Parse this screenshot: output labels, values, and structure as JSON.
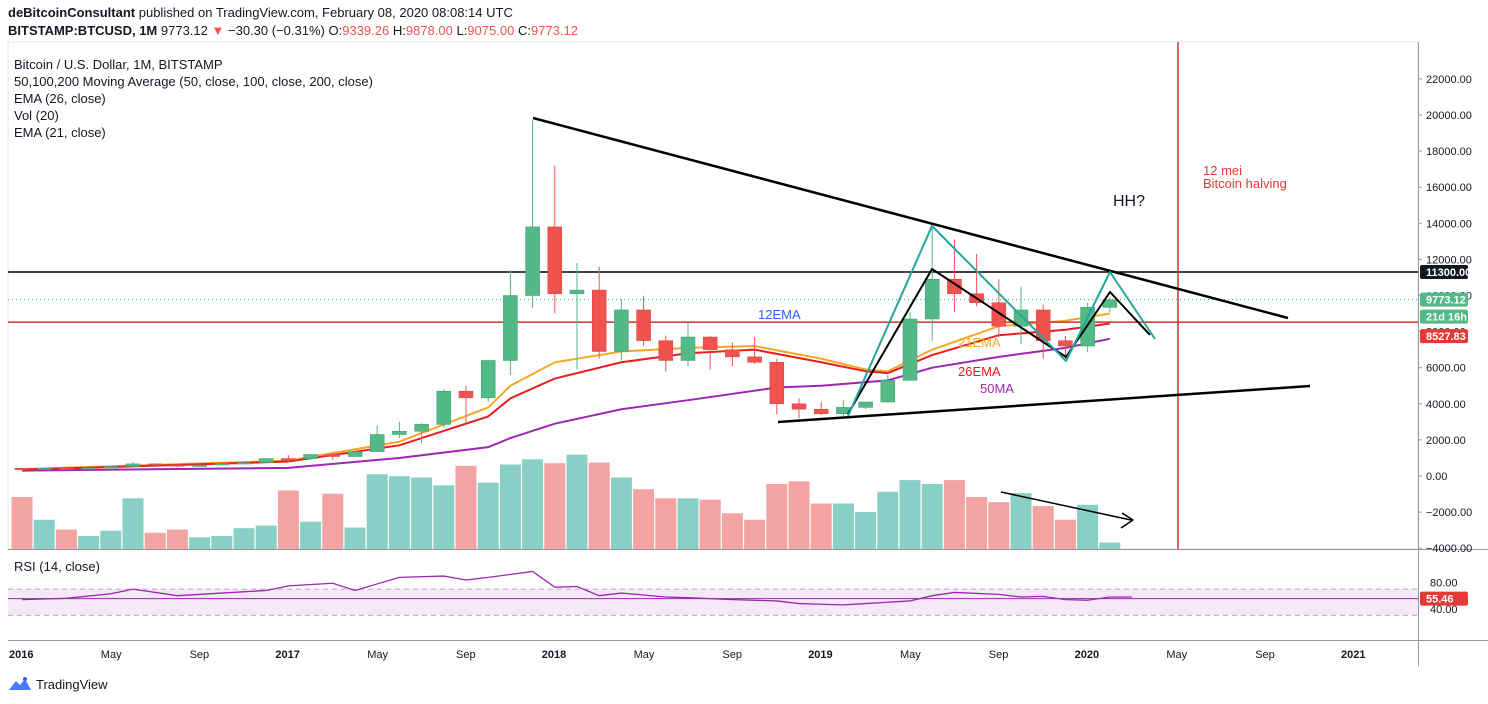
{
  "header": {
    "author": "deBitcoinConsultant",
    "published": "published on TradingView.com, February 08, 2020 08:08:14 UTC",
    "symbol": "BITSTAMP:BTCUSD, 1M",
    "last": "9773.12",
    "change": "−30.30 (−0.31%)",
    "o_label": "O:",
    "o_value": "9339.26",
    "h_label": "H:",
    "h_value": "9878.00",
    "l_label": "L:",
    "l_value": "9075.00",
    "c_label": "C:",
    "c_value": "9773.12"
  },
  "legend": [
    "Bitcoin / U.S. Dollar, 1M, BITSTAMP",
    "50,100,200 Moving Average (50, close, 100, close, 200, close)",
    "EMA (26, close)",
    "Vol (20)",
    "EMA (21, close)"
  ],
  "rsi_label": "RSI (14, close)",
  "footer": {
    "brand": "TradingView"
  },
  "colors": {
    "up": "#26a69a",
    "up_fill": "#53b987",
    "down": "#ef5350",
    "ema21": "#f5a623",
    "ema26": "#e91e1e",
    "ma50": "#9c27b0",
    "rsi": "#9c27b0",
    "red_line": "#d32f2f"
  },
  "annotations": {
    "ema12": "12EMA",
    "ema21": "21EMA",
    "ema26": "26EMA",
    "ma50": "50MA",
    "hh": "HH?",
    "halving_1": "12 mei",
    "halving_2": "Bitcoin halving"
  },
  "price_tags": {
    "resistance": "11300.00",
    "last": "9773.12",
    "countdown": "21d 16h",
    "ema_level": "8527.83",
    "rsi": "55.46"
  },
  "chart_data": {
    "type": "candlestick",
    "x_ticks": [
      "2016",
      "May",
      "Sep",
      "2017",
      "May",
      "Sep",
      "2018",
      "May",
      "Sep",
      "2019",
      "May",
      "Sep",
      "2020",
      "May",
      "Sep",
      "2021"
    ],
    "y_ticks": [
      "22000.00",
      "20000.00",
      "18000.00",
      "16000.00",
      "14000.00",
      "12000.00",
      "10000.00",
      "8000.00",
      "6000.00",
      "4000.00",
      "2000.00",
      "0.00",
      "−2000.00",
      "−4000.00"
    ],
    "rsi_ticks": [
      "80.00",
      "40.00"
    ],
    "ylim": [
      -4000,
      23500
    ],
    "candles": [
      {
        "t": "2016-01",
        "o": 430,
        "h": 460,
        "l": 350,
        "c": 370
      },
      {
        "t": "2016-02",
        "o": 370,
        "h": 440,
        "l": 360,
        "c": 435
      },
      {
        "t": "2016-03",
        "o": 435,
        "h": 440,
        "l": 390,
        "c": 415
      },
      {
        "t": "2016-04",
        "o": 415,
        "h": 470,
        "l": 410,
        "c": 450
      },
      {
        "t": "2016-05",
        "o": 450,
        "h": 550,
        "l": 440,
        "c": 530
      },
      {
        "t": "2016-06",
        "o": 530,
        "h": 780,
        "l": 520,
        "c": 670
      },
      {
        "t": "2016-07",
        "o": 670,
        "h": 700,
        "l": 600,
        "c": 620
      },
      {
        "t": "2016-08",
        "o": 620,
        "h": 630,
        "l": 480,
        "c": 575
      },
      {
        "t": "2016-09",
        "o": 575,
        "h": 620,
        "l": 570,
        "c": 610
      },
      {
        "t": "2016-10",
        "o": 610,
        "h": 720,
        "l": 600,
        "c": 700
      },
      {
        "t": "2016-11",
        "o": 700,
        "h": 760,
        "l": 680,
        "c": 745
      },
      {
        "t": "2016-12",
        "o": 745,
        "h": 980,
        "l": 740,
        "c": 965
      },
      {
        "t": "2017-01",
        "o": 965,
        "h": 1150,
        "l": 750,
        "c": 960
      },
      {
        "t": "2017-02",
        "o": 960,
        "h": 1210,
        "l": 930,
        "c": 1190
      },
      {
        "t": "2017-03",
        "o": 1190,
        "h": 1300,
        "l": 900,
        "c": 1080
      },
      {
        "t": "2017-04",
        "o": 1080,
        "h": 1400,
        "l": 1060,
        "c": 1350
      },
      {
        "t": "2017-05",
        "o": 1350,
        "h": 2800,
        "l": 1340,
        "c": 2300
      },
      {
        "t": "2017-06",
        "o": 2300,
        "h": 3000,
        "l": 2100,
        "c": 2480
      },
      {
        "t": "2017-07",
        "o": 2480,
        "h": 2920,
        "l": 1800,
        "c": 2860
      },
      {
        "t": "2017-08",
        "o": 2860,
        "h": 4800,
        "l": 2700,
        "c": 4700
      },
      {
        "t": "2017-09",
        "o": 4700,
        "h": 5000,
        "l": 2950,
        "c": 4330
      },
      {
        "t": "2017-10",
        "o": 4330,
        "h": 6450,
        "l": 4100,
        "c": 6400
      },
      {
        "t": "2017-11",
        "o": 6400,
        "h": 11400,
        "l": 5600,
        "c": 10000
      },
      {
        "t": "2017-12",
        "o": 10000,
        "h": 19700,
        "l": 9300,
        "c": 13800
      },
      {
        "t": "2018-01",
        "o": 13800,
        "h": 17200,
        "l": 9000,
        "c": 10100
      },
      {
        "t": "2018-02",
        "o": 10100,
        "h": 11800,
        "l": 5900,
        "c": 10300
      },
      {
        "t": "2018-03",
        "o": 10300,
        "h": 11600,
        "l": 6500,
        "c": 6900
      },
      {
        "t": "2018-04",
        "o": 6900,
        "h": 9800,
        "l": 6400,
        "c": 9200
      },
      {
        "t": "2018-05",
        "o": 9200,
        "h": 9990,
        "l": 7200,
        "c": 7500
      },
      {
        "t": "2018-06",
        "o": 7500,
        "h": 7780,
        "l": 5800,
        "c": 6400
      },
      {
        "t": "2018-07",
        "o": 6400,
        "h": 8500,
        "l": 6100,
        "c": 7700
      },
      {
        "t": "2018-08",
        "o": 7700,
        "h": 7750,
        "l": 5900,
        "c": 7000
      },
      {
        "t": "2018-09",
        "o": 7000,
        "h": 7400,
        "l": 6100,
        "c": 6600
      },
      {
        "t": "2018-10",
        "o": 6600,
        "h": 7700,
        "l": 6200,
        "c": 6300
      },
      {
        "t": "2018-11",
        "o": 6300,
        "h": 6500,
        "l": 3400,
        "c": 4000
      },
      {
        "t": "2018-12",
        "o": 4000,
        "h": 4300,
        "l": 3200,
        "c": 3700
      },
      {
        "t": "2019-01",
        "o": 3700,
        "h": 4100,
        "l": 3400,
        "c": 3450
      },
      {
        "t": "2019-02",
        "o": 3450,
        "h": 4200,
        "l": 3300,
        "c": 3800
      },
      {
        "t": "2019-03",
        "o": 3800,
        "h": 4100,
        "l": 3700,
        "c": 4100
      },
      {
        "t": "2019-04",
        "o": 4100,
        "h": 5600,
        "l": 4050,
        "c": 5300
      },
      {
        "t": "2019-05",
        "o": 5300,
        "h": 9100,
        "l": 5300,
        "c": 8700
      },
      {
        "t": "2019-06",
        "o": 8700,
        "h": 13800,
        "l": 7500,
        "c": 10900
      },
      {
        "t": "2019-07",
        "o": 10900,
        "h": 13100,
        "l": 9100,
        "c": 10100
      },
      {
        "t": "2019-08",
        "o": 10100,
        "h": 12300,
        "l": 9400,
        "c": 9600
      },
      {
        "t": "2019-09",
        "o": 9600,
        "h": 10900,
        "l": 7700,
        "c": 8300
      },
      {
        "t": "2019-10",
        "o": 8300,
        "h": 10500,
        "l": 7300,
        "c": 9200
      },
      {
        "t": "2019-11",
        "o": 9200,
        "h": 9500,
        "l": 6500,
        "c": 7500
      },
      {
        "t": "2019-12",
        "o": 7500,
        "h": 7750,
        "l": 6400,
        "c": 7200
      },
      {
        "t": "2020-01",
        "o": 7200,
        "h": 9600,
        "l": 6850,
        "c": 9350
      },
      {
        "t": "2020-02",
        "o": 9339.26,
        "h": 9878,
        "l": 9075,
        "c": 9773.12
      }
    ],
    "volume": [
      {
        "t": "2016-01",
        "v": 0.8,
        "up": false
      },
      {
        "t": "2016-02",
        "v": 0.45,
        "up": true
      },
      {
        "t": "2016-03",
        "v": 0.3,
        "up": false
      },
      {
        "t": "2016-04",
        "v": 0.2,
        "up": true
      },
      {
        "t": "2016-05",
        "v": 0.28,
        "up": true
      },
      {
        "t": "2016-06",
        "v": 0.78,
        "up": true
      },
      {
        "t": "2016-07",
        "v": 0.25,
        "up": false
      },
      {
        "t": "2016-08",
        "v": 0.3,
        "up": false
      },
      {
        "t": "2016-09",
        "v": 0.18,
        "up": true
      },
      {
        "t": "2016-10",
        "v": 0.2,
        "up": true
      },
      {
        "t": "2016-11",
        "v": 0.32,
        "up": true
      },
      {
        "t": "2016-12",
        "v": 0.36,
        "up": true
      },
      {
        "t": "2017-01",
        "v": 0.9,
        "up": false
      },
      {
        "t": "2017-02",
        "v": 0.42,
        "up": true
      },
      {
        "t": "2017-03",
        "v": 0.85,
        "up": false
      },
      {
        "t": "2017-04",
        "v": 0.33,
        "up": true
      },
      {
        "t": "2017-05",
        "v": 1.15,
        "up": true
      },
      {
        "t": "2017-06",
        "v": 1.12,
        "up": true
      },
      {
        "t": "2017-07",
        "v": 1.1,
        "up": true
      },
      {
        "t": "2017-08",
        "v": 0.98,
        "up": true
      },
      {
        "t": "2017-09",
        "v": 1.28,
        "up": false
      },
      {
        "t": "2017-10",
        "v": 1.02,
        "up": true
      },
      {
        "t": "2017-11",
        "v": 1.3,
        "up": true
      },
      {
        "t": "2017-12",
        "v": 1.38,
        "up": true
      },
      {
        "t": "2018-01",
        "v": 1.32,
        "up": false
      },
      {
        "t": "2018-02",
        "v": 1.45,
        "up": true
      },
      {
        "t": "2018-03",
        "v": 1.33,
        "up": false
      },
      {
        "t": "2018-04",
        "v": 1.1,
        "up": true
      },
      {
        "t": "2018-05",
        "v": 0.92,
        "up": false
      },
      {
        "t": "2018-06",
        "v": 0.78,
        "up": false
      },
      {
        "t": "2018-07",
        "v": 0.78,
        "up": true
      },
      {
        "t": "2018-08",
        "v": 0.76,
        "up": false
      },
      {
        "t": "2018-09",
        "v": 0.55,
        "up": false
      },
      {
        "t": "2018-10",
        "v": 0.45,
        "up": false
      },
      {
        "t": "2018-11",
        "v": 1.0,
        "up": false
      },
      {
        "t": "2018-12",
        "v": 1.04,
        "up": false
      },
      {
        "t": "2019-01",
        "v": 0.7,
        "up": false
      },
      {
        "t": "2019-02",
        "v": 0.7,
        "up": true
      },
      {
        "t": "2019-03",
        "v": 0.57,
        "up": true
      },
      {
        "t": "2019-04",
        "v": 0.88,
        "up": true
      },
      {
        "t": "2019-05",
        "v": 1.06,
        "up": true
      },
      {
        "t": "2019-06",
        "v": 1.0,
        "up": true
      },
      {
        "t": "2019-07",
        "v": 1.06,
        "up": false
      },
      {
        "t": "2019-08",
        "v": 0.8,
        "up": false
      },
      {
        "t": "2019-09",
        "v": 0.72,
        "up": false
      },
      {
        "t": "2019-10",
        "v": 0.86,
        "up": true
      },
      {
        "t": "2019-11",
        "v": 0.66,
        "up": false
      },
      {
        "t": "2019-12",
        "v": 0.45,
        "up": false
      },
      {
        "t": "2020-01",
        "v": 0.68,
        "up": true
      },
      {
        "t": "2020-02",
        "v": 0.1,
        "up": true
      }
    ],
    "ema21": [
      [
        0,
        380
      ],
      [
        12,
        850
      ],
      [
        17,
        1900
      ],
      [
        21,
        3800
      ],
      [
        22,
        5000
      ],
      [
        24,
        6300
      ],
      [
        27,
        6900
      ],
      [
        30,
        7100
      ],
      [
        33,
        7200
      ],
      [
        36,
        6500
      ],
      [
        38,
        5900
      ],
      [
        39,
        5800
      ],
      [
        41,
        7000
      ],
      [
        44,
        8300
      ],
      [
        47,
        8600
      ],
      [
        49,
        9000
      ]
    ],
    "ema26": [
      [
        0,
        350
      ],
      [
        12,
        800
      ],
      [
        17,
        1700
      ],
      [
        21,
        3300
      ],
      [
        22,
        4300
      ],
      [
        24,
        5400
      ],
      [
        27,
        6300
      ],
      [
        30,
        6800
      ],
      [
        33,
        7000
      ],
      [
        36,
        6300
      ],
      [
        38,
        5800
      ],
      [
        39,
        5700
      ],
      [
        41,
        6700
      ],
      [
        44,
        7800
      ],
      [
        47,
        8100
      ],
      [
        49,
        8450
      ]
    ],
    "ma50": [
      [
        0,
        300
      ],
      [
        12,
        450
      ],
      [
        17,
        1000
      ],
      [
        21,
        1600
      ],
      [
        22,
        2100
      ],
      [
        24,
        2900
      ],
      [
        27,
        3700
      ],
      [
        30,
        4200
      ],
      [
        34,
        4900
      ],
      [
        36,
        5000
      ],
      [
        39,
        5300
      ],
      [
        41,
        6000
      ],
      [
        44,
        6600
      ],
      [
        47,
        7100
      ],
      [
        49,
        7600
      ]
    ],
    "rsi": [
      [
        0,
        54
      ],
      [
        2,
        56
      ],
      [
        4,
        63
      ],
      [
        5,
        70
      ],
      [
        7,
        60
      ],
      [
        9,
        64
      ],
      [
        11,
        68
      ],
      [
        12,
        75
      ],
      [
        14,
        79
      ],
      [
        15,
        68
      ],
      [
        17,
        88
      ],
      [
        19,
        90
      ],
      [
        20,
        84
      ],
      [
        21,
        88
      ],
      [
        23,
        97
      ],
      [
        24,
        73
      ],
      [
        25,
        74
      ],
      [
        26,
        60
      ],
      [
        27,
        64
      ],
      [
        29,
        58
      ],
      [
        30,
        57
      ],
      [
        32,
        54
      ],
      [
        34,
        52
      ],
      [
        35,
        48
      ],
      [
        36,
        47
      ],
      [
        37,
        46
      ],
      [
        38,
        48
      ],
      [
        40,
        52
      ],
      [
        41,
        60
      ],
      [
        42,
        65
      ],
      [
        44,
        62
      ],
      [
        45,
        58
      ],
      [
        46,
        59
      ],
      [
        47,
        54
      ],
      [
        48,
        53
      ],
      [
        49,
        58
      ],
      [
        50,
        58
      ]
    ],
    "rsi_last": 55.46,
    "resistance_level": 11300,
    "ema12_level": 8527.83,
    "last_price": 9773.12
  }
}
